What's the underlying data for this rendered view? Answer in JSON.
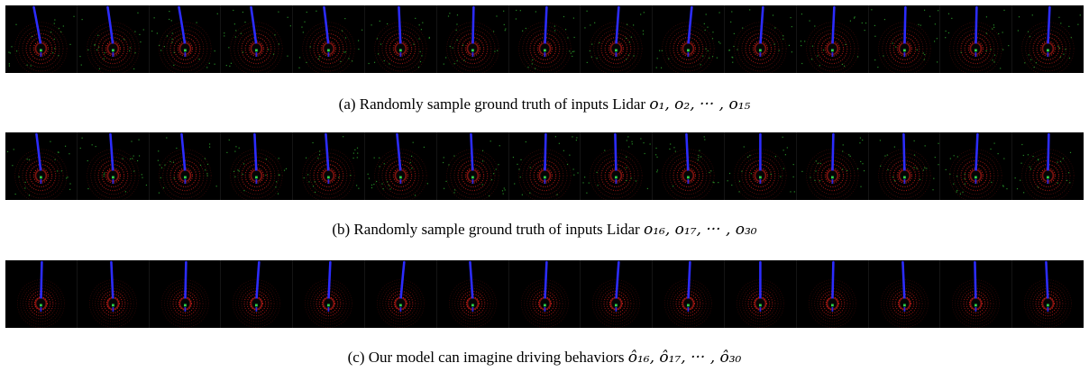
{
  "figure": {
    "rows": [
      {
        "id": "a",
        "caption_prefix": "(a) Randomly sample ground truth of inputs Lidar",
        "caption_math": "o₁, o₂, ··· , o₁₅",
        "frames": 15,
        "style": "ground-truth",
        "trajectory_bends": [
          -0.8,
          -0.6,
          -0.7,
          -0.6,
          -0.5,
          -0.2,
          0.1,
          0.2,
          0.3,
          0.4,
          0.3,
          0.2,
          0.1,
          0.1,
          0.2
        ]
      },
      {
        "id": "b",
        "caption_prefix": "(b) Randomly sample ground truth of inputs Lidar",
        "caption_math": "o₁₆, o₁₇, ··· , o₃₀",
        "frames": 15,
        "style": "ground-truth",
        "trajectory_bends": [
          -0.5,
          -0.3,
          -0.4,
          -0.2,
          -0.3,
          -0.4,
          -0.2,
          0.1,
          -0.1,
          -0.2,
          0.0,
          0.1,
          -0.1,
          0.2,
          0.1
        ]
      },
      {
        "id": "c",
        "caption_prefix": "(c) Our model can imagine driving behaviors",
        "caption_math": "ô₁₆, ô₁₇, ··· , ô₃₀",
        "frames": 15,
        "style": "imagined",
        "trajectory_bends": [
          0.1,
          -0.2,
          0.1,
          0.3,
          0.2,
          0.4,
          -0.3,
          0.2,
          0.3,
          0.2,
          0.0,
          0.1,
          -0.2,
          -0.1,
          -0.2
        ]
      }
    ],
    "colors": {
      "background": "#000000",
      "lidar_points": "#e0201a",
      "obstacles": "#2fae2f",
      "trajectory": "#2c2cff",
      "ego_vehicle": "#2fd24a"
    }
  }
}
